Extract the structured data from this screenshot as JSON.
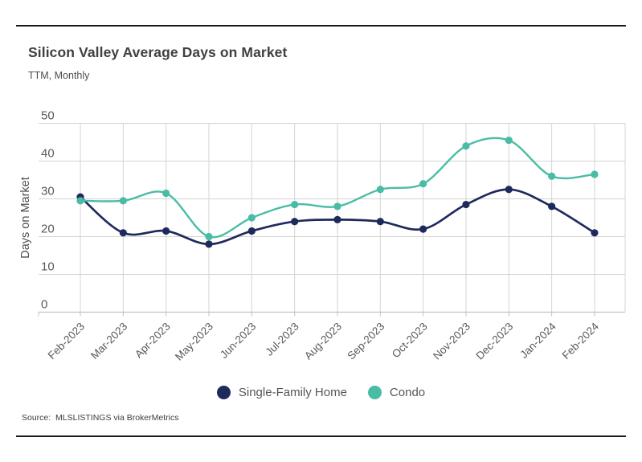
{
  "chart_data": {
    "type": "line",
    "title": "Silicon Valley Average Days on Market",
    "subtitle": "TTM, Monthly",
    "xlabel": "",
    "ylabel": "Days on Market",
    "ylim": [
      0,
      50
    ],
    "yticks": [
      0,
      10,
      20,
      30,
      40,
      50
    ],
    "grid": true,
    "legend_position": "bottom",
    "categories": [
      "Feb-2023",
      "Mar-2023",
      "Apr-2023",
      "May-2023",
      "Jun-2023",
      "Jul-2023",
      "Aug-2023",
      "Sep-2023",
      "Oct-2023",
      "Nov-2023",
      "Dec-2023",
      "Jan-2024",
      "Feb-2024"
    ],
    "series": [
      {
        "name": "Single-Family Home",
        "color": "#1f2a5c",
        "values": [
          30.5,
          21,
          21.5,
          18,
          21.5,
          24,
          24.5,
          24,
          22,
          28.5,
          32.5,
          28,
          21
        ]
      },
      {
        "name": "Condo",
        "color": "#4abca6",
        "values": [
          29.5,
          29.5,
          31.5,
          20,
          25,
          28.5,
          28,
          32.5,
          34,
          44,
          45.5,
          36,
          36.5
        ]
      }
    ]
  },
  "footer": {
    "source": "Source:  MLSLISTINGS via BrokerMetrics"
  },
  "colors": {
    "navy": "#1f2a5c",
    "teal": "#4abca6",
    "grid_line": "#d4d4d4",
    "axis_line": "#c2c2c2",
    "axis_text": "#58595b",
    "title_text": "#3f4042",
    "rule": "#191919",
    "background": "#ffffff"
  }
}
